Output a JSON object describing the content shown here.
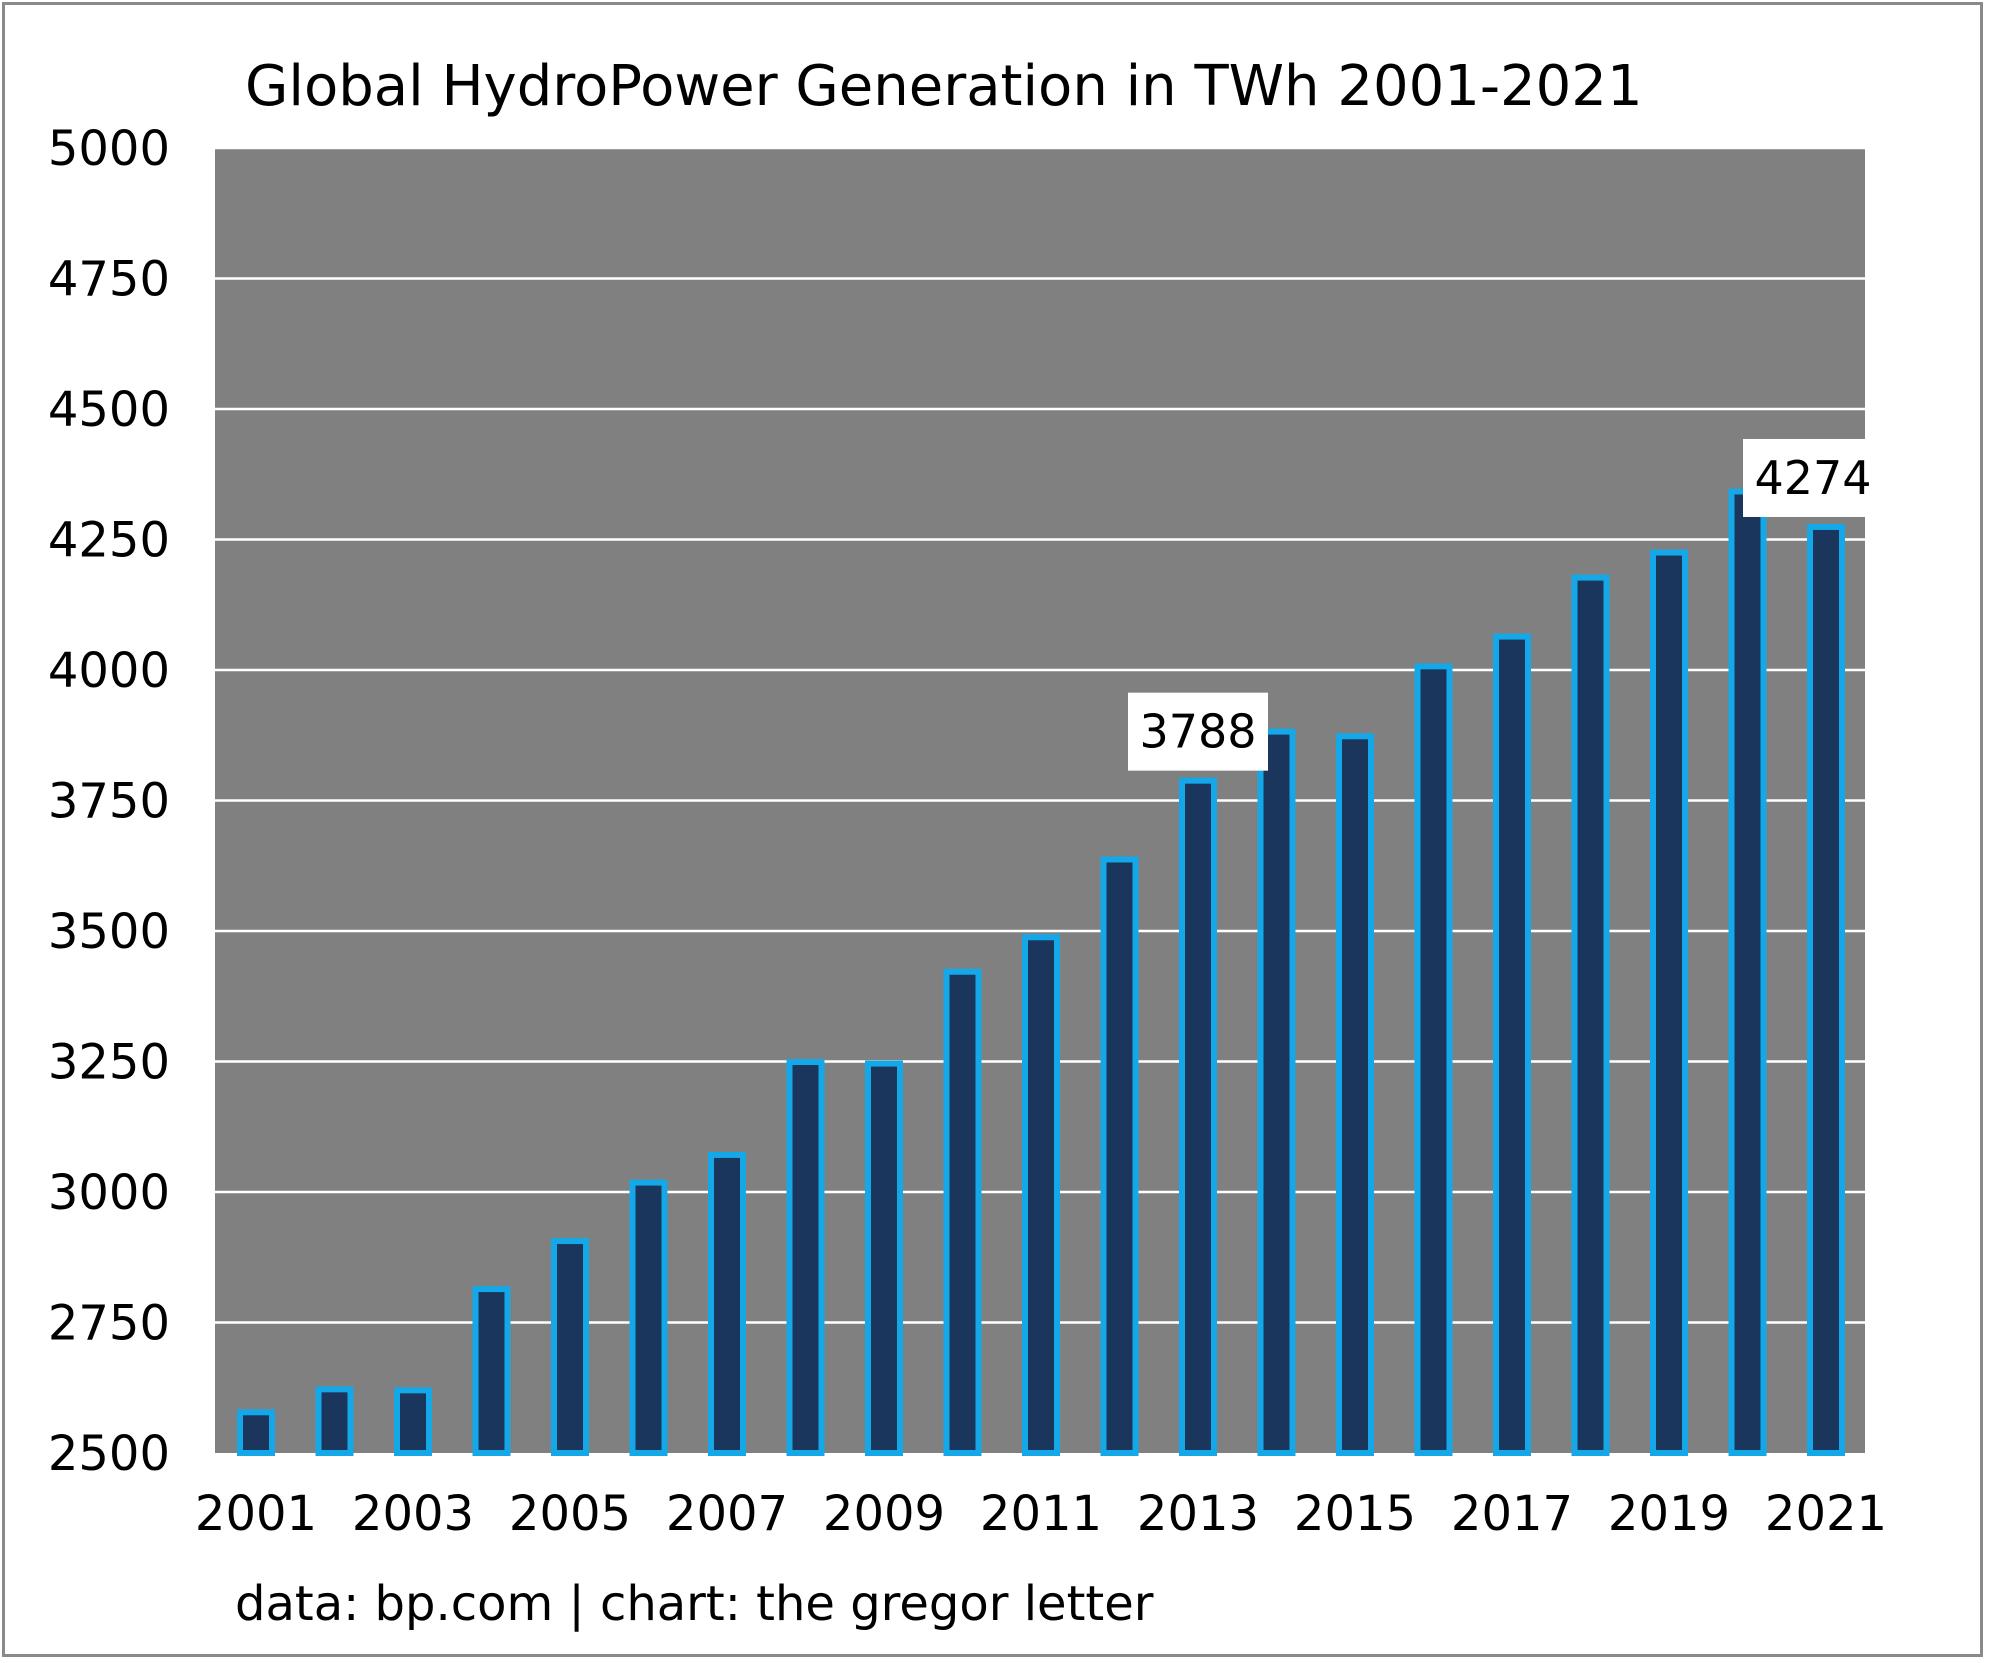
{
  "chart_data": {
    "type": "bar",
    "title": "Global HydroPower Generation in TWh 2001-2021",
    "xlabel": "",
    "ylabel": "",
    "x": [
      2001,
      2002,
      2003,
      2004,
      2005,
      2006,
      2007,
      2008,
      2009,
      2010,
      2011,
      2012,
      2013,
      2014,
      2015,
      2016,
      2017,
      2018,
      2019,
      2020,
      2021
    ],
    "x_tick_labels": [
      "2001",
      "2003",
      "2005",
      "2007",
      "2009",
      "2011",
      "2013",
      "2015",
      "2017",
      "2019",
      "2021"
    ],
    "values": [
      2578,
      2622,
      2620,
      2814,
      2906,
      3018,
      3071,
      3249,
      3246,
      3422,
      3488,
      3637,
      3788,
      3882,
      3873,
      4007,
      4064,
      4177,
      4225,
      4342,
      4274
    ],
    "ylim": [
      2500,
      5000
    ],
    "y_tick_labels": [
      "2500",
      "2750",
      "3000",
      "3250",
      "3500",
      "3750",
      "4000",
      "4250",
      "4500",
      "4750",
      "5000"
    ],
    "grid": true,
    "annotations": [
      {
        "x": 2013,
        "text": "3788"
      },
      {
        "x": 2021,
        "text": "4274"
      }
    ],
    "source": "data: bp.com | chart: the gregor letter",
    "colors": {
      "plot_background": "#808080",
      "bar_fill": "#1b365d",
      "bar_edge": "#15a8e8",
      "gridline": "#ffffff",
      "frame": "#8a8a8a"
    }
  }
}
